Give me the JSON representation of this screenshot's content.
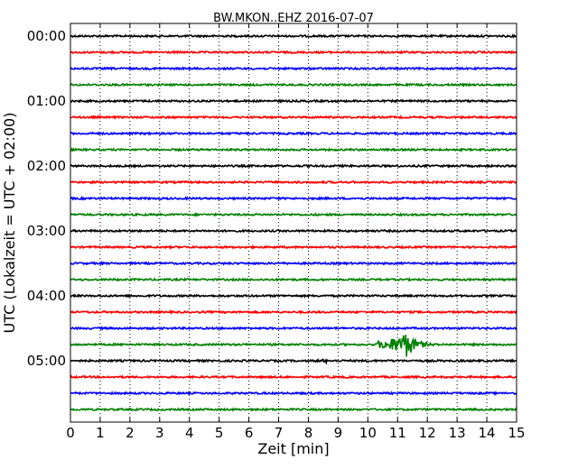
{
  "chart_data": {
    "type": "line",
    "title": "BW.MKON..EHZ 2016-07-07",
    "xlabel": "Zeit  [min]",
    "ylabel": "UTC (Lokalzeit = UTC + 02:00)",
    "xlim": [
      0,
      15
    ],
    "x_ticks": [
      "0",
      "1",
      "2",
      "3",
      "4",
      "5",
      "6",
      "7",
      "8",
      "9",
      "10",
      "11",
      "12",
      "13",
      "14",
      "15"
    ],
    "y_ticks": [
      "00:00",
      "01:00",
      "02:00",
      "03:00",
      "04:00",
      "05:00"
    ],
    "trace_start_minutes": [
      0,
      15,
      30,
      45,
      60,
      75,
      90,
      105,
      120,
      135,
      150,
      165,
      180,
      195,
      210,
      225,
      240,
      255,
      270,
      285,
      300,
      315,
      330,
      345
    ],
    "trace_colors": [
      "#000000",
      "#ff0000",
      "#0000ff",
      "#008000"
    ],
    "grid": "vertical-dotted",
    "events": [
      {
        "trace_start_minute": 285,
        "onset_min": 10.3,
        "peak_min": 11.3,
        "end_min": 12.6,
        "relative_amplitude": 1.0
      },
      {
        "trace_start_minute": 300,
        "onset_min": 7.7,
        "peak_min": 8.6,
        "end_min": 8.9,
        "relative_amplitude": 0.15
      }
    ]
  }
}
